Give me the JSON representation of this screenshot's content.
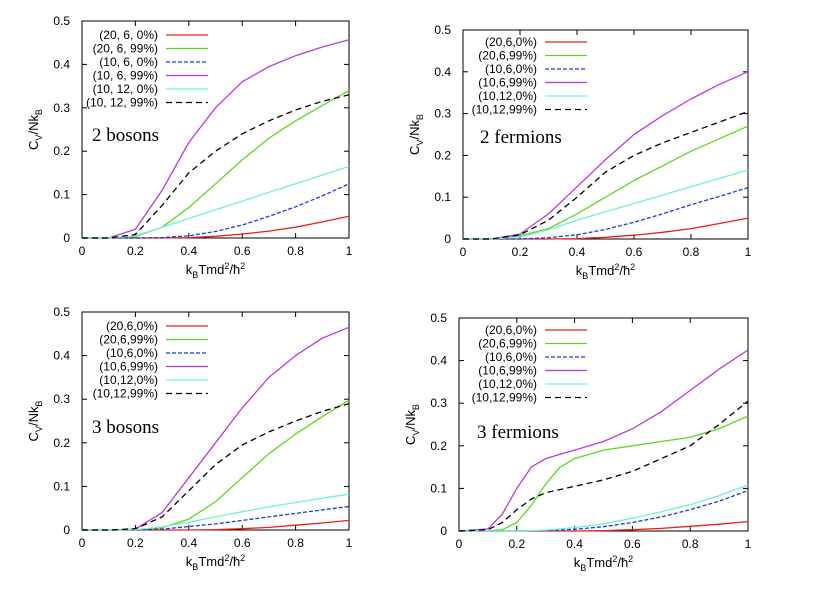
{
  "chart_data": [
    {
      "type": "line",
      "panel_label": "2 bosons",
      "xlabel": "k_BTmd^2/ħ^2",
      "ylabel": "C_V/Nk_B",
      "xlim": [
        0,
        1
      ],
      "ylim": [
        0,
        0.5
      ],
      "xticks": [
        "0",
        "0.2",
        "0.4",
        "0.6",
        "0.8",
        "1"
      ],
      "yticks": [
        "0",
        "0.1",
        "0.2",
        "0.3",
        "0.4",
        "0.5"
      ],
      "legend_position": "top-left",
      "series": [
        {
          "name": "(20, 6, 0%)",
          "color": "#e8211c",
          "dash": "solid",
          "x": [
            0,
            0.1,
            0.2,
            0.3,
            0.4,
            0.5,
            0.6,
            0.7,
            0.8,
            0.9,
            1.0
          ],
          "y": [
            0,
            0,
            0,
            0,
            0.001,
            0.004,
            0.009,
            0.016,
            0.025,
            0.037,
            0.05
          ]
        },
        {
          "name": "(20, 6, 99%)",
          "color": "#5ed81e",
          "dash": "solid",
          "x": [
            0,
            0.1,
            0.2,
            0.3,
            0.4,
            0.5,
            0.6,
            0.7,
            0.8,
            0.9,
            1.0
          ],
          "y": [
            0,
            0,
            0.003,
            0.025,
            0.07,
            0.125,
            0.18,
            0.23,
            0.27,
            0.305,
            0.34
          ]
        },
        {
          "name": "(10, 6, 0%)",
          "color": "#1f3ad8",
          "dash": "dashed",
          "x": [
            0,
            0.1,
            0.2,
            0.3,
            0.4,
            0.5,
            0.6,
            0.7,
            0.8,
            0.9,
            1.0
          ],
          "y": [
            0,
            0,
            0,
            0.001,
            0.005,
            0.015,
            0.03,
            0.05,
            0.072,
            0.097,
            0.125
          ]
        },
        {
          "name": "(10, 6, 99%)",
          "color": "#b23ee0",
          "dash": "solid",
          "x": [
            0,
            0.1,
            0.2,
            0.3,
            0.4,
            0.5,
            0.6,
            0.7,
            0.8,
            0.9,
            1.0
          ],
          "y": [
            0,
            0,
            0.02,
            0.11,
            0.22,
            0.3,
            0.36,
            0.395,
            0.42,
            0.44,
            0.457
          ]
        },
        {
          "name": "(10, 12, 0%)",
          "color": "#6ff2d3",
          "dash": "solid",
          "x": [
            0,
            0.1,
            0.2,
            0.3,
            0.4,
            0.5,
            0.6,
            0.7,
            0.8,
            0.9,
            1.0
          ],
          "y": [
            0,
            0,
            0.005,
            0.025,
            0.045,
            0.065,
            0.085,
            0.105,
            0.125,
            0.145,
            0.165
          ]
        },
        {
          "name": "(10, 12, 99%)",
          "color": "#000000",
          "dash": "dashed",
          "x": [
            0,
            0.1,
            0.2,
            0.3,
            0.4,
            0.5,
            0.6,
            0.7,
            0.8,
            0.9,
            1.0
          ],
          "y": [
            0,
            0,
            0.008,
            0.075,
            0.15,
            0.2,
            0.24,
            0.27,
            0.295,
            0.315,
            0.33
          ]
        }
      ]
    },
    {
      "type": "line",
      "panel_label": "2 fermions",
      "xlabel": "k_BTmd^2/ħ^2",
      "ylabel": "C_V/Nk_B",
      "xlim": [
        0,
        1
      ],
      "ylim": [
        0,
        0.5
      ],
      "xticks": [
        "0",
        "0.2",
        "0.4",
        "0.6",
        "0.8",
        "1"
      ],
      "yticks": [
        "0",
        "0.1",
        "0.2",
        "0.3",
        "0.4",
        "0.5"
      ],
      "legend_position": "top-left",
      "series": [
        {
          "name": "(20,6,0%)",
          "color": "#e8211c",
          "dash": "solid",
          "x": [
            0,
            0.1,
            0.2,
            0.3,
            0.4,
            0.5,
            0.6,
            0.7,
            0.8,
            0.9,
            1.0
          ],
          "y": [
            0,
            0,
            0,
            0,
            0.001,
            0.004,
            0.009,
            0.016,
            0.025,
            0.037,
            0.05
          ]
        },
        {
          "name": "(20,6,99%)",
          "color": "#5ed81e",
          "dash": "solid",
          "x": [
            0,
            0.1,
            0.2,
            0.3,
            0.4,
            0.5,
            0.6,
            0.7,
            0.8,
            0.9,
            1.0
          ],
          "y": [
            0,
            0,
            0.008,
            0.025,
            0.06,
            0.1,
            0.14,
            0.175,
            0.21,
            0.24,
            0.27
          ]
        },
        {
          "name": "(10,6,0%)",
          "color": "#1f3ad8",
          "dash": "dashed",
          "x": [
            0,
            0.1,
            0.2,
            0.3,
            0.4,
            0.5,
            0.6,
            0.7,
            0.8,
            0.9,
            1.0
          ],
          "y": [
            0,
            0,
            0,
            0.003,
            0.01,
            0.023,
            0.04,
            0.06,
            0.082,
            0.102,
            0.123
          ]
        },
        {
          "name": "(10,6,99%)",
          "color": "#b23ee0",
          "dash": "solid",
          "x": [
            0,
            0.1,
            0.2,
            0.3,
            0.4,
            0.5,
            0.6,
            0.7,
            0.8,
            0.9,
            1.0
          ],
          "y": [
            0,
            0,
            0.012,
            0.06,
            0.125,
            0.19,
            0.25,
            0.295,
            0.335,
            0.37,
            0.4
          ]
        },
        {
          "name": "(10,12,0%)",
          "color": "#6ff2d3",
          "dash": "solid",
          "x": [
            0,
            0.1,
            0.2,
            0.3,
            0.4,
            0.5,
            0.6,
            0.7,
            0.8,
            0.9,
            1.0
          ],
          "y": [
            0,
            0,
            0.005,
            0.022,
            0.045,
            0.065,
            0.085,
            0.105,
            0.125,
            0.145,
            0.165
          ]
        },
        {
          "name": "(10,12,99%)",
          "color": "#000000",
          "dash": "dashed",
          "x": [
            0,
            0.1,
            0.2,
            0.3,
            0.4,
            0.5,
            0.6,
            0.7,
            0.8,
            0.9,
            1.0
          ],
          "y": [
            0,
            0,
            0.01,
            0.045,
            0.1,
            0.16,
            0.2,
            0.23,
            0.255,
            0.28,
            0.305
          ]
        }
      ]
    },
    {
      "type": "line",
      "panel_label": "3 bosons",
      "xlabel": "k_BTmd^2/ħ^2",
      "ylabel": "C_V/Nk_B",
      "xlim": [
        0,
        1
      ],
      "ylim": [
        0,
        0.5
      ],
      "xticks": [
        "0",
        "0.2",
        "0.4",
        "0.6",
        "0.8",
        "1"
      ],
      "yticks": [
        "0",
        "0.1",
        "0.2",
        "0.3",
        "0.4",
        "0.5"
      ],
      "legend_position": "top-left",
      "series": [
        {
          "name": "(20,6,0%)",
          "color": "#e8211c",
          "dash": "solid",
          "x": [
            0,
            0.1,
            0.2,
            0.3,
            0.4,
            0.5,
            0.6,
            0.7,
            0.8,
            0.9,
            1.0
          ],
          "y": [
            0,
            0,
            0,
            0,
            0,
            0.001,
            0.003,
            0.006,
            0.011,
            0.016,
            0.022
          ]
        },
        {
          "name": "(20,6,99%)",
          "color": "#5ed81e",
          "dash": "solid",
          "x": [
            0,
            0.1,
            0.2,
            0.3,
            0.4,
            0.5,
            0.6,
            0.7,
            0.8,
            0.9,
            1.0
          ],
          "y": [
            0,
            0,
            0,
            0.005,
            0.025,
            0.065,
            0.12,
            0.175,
            0.22,
            0.26,
            0.298
          ]
        },
        {
          "name": "(10,6,0%)",
          "color": "#1f3ad8",
          "dash": "dashed",
          "x": [
            0,
            0.1,
            0.2,
            0.3,
            0.4,
            0.5,
            0.6,
            0.7,
            0.8,
            0.9,
            1.0
          ],
          "y": [
            0,
            0,
            0,
            0.002,
            0.008,
            0.014,
            0.022,
            0.03,
            0.038,
            0.046,
            0.054
          ]
        },
        {
          "name": "(10,6,99%)",
          "color": "#b23ee0",
          "dash": "solid",
          "x": [
            0,
            0.1,
            0.2,
            0.3,
            0.4,
            0.5,
            0.6,
            0.7,
            0.8,
            0.9,
            1.0
          ],
          "y": [
            0,
            0,
            0.002,
            0.04,
            0.12,
            0.2,
            0.28,
            0.35,
            0.4,
            0.44,
            0.465
          ]
        },
        {
          "name": "(10,12,0%)",
          "color": "#6ff2d3",
          "dash": "solid",
          "x": [
            0,
            0.1,
            0.2,
            0.3,
            0.4,
            0.5,
            0.6,
            0.7,
            0.8,
            0.9,
            1.0
          ],
          "y": [
            0,
            0,
            0.001,
            0.007,
            0.018,
            0.03,
            0.042,
            0.053,
            0.063,
            0.073,
            0.082
          ]
        },
        {
          "name": "(10,12,99%)",
          "color": "#000000",
          "dash": "dashed",
          "x": [
            0,
            0.1,
            0.2,
            0.3,
            0.4,
            0.5,
            0.6,
            0.7,
            0.8,
            0.9,
            1.0
          ],
          "y": [
            0,
            0,
            0.003,
            0.03,
            0.09,
            0.15,
            0.195,
            0.225,
            0.25,
            0.272,
            0.29
          ]
        }
      ]
    },
    {
      "type": "line",
      "panel_label": "3 fermions",
      "xlabel": "k_BTmd^2/ħ^2",
      "ylabel": "C_V/Nk_B",
      "xlim": [
        0,
        1
      ],
      "ylim": [
        0,
        0.5
      ],
      "xticks": [
        "0",
        "0.2",
        "0.4",
        "0.6",
        "0.8",
        "1"
      ],
      "yticks": [
        "0",
        "0.1",
        "0.2",
        "0.3",
        "0.4",
        "0.5"
      ],
      "legend_position": "top-left",
      "series": [
        {
          "name": "(20,6,0%)",
          "color": "#e8211c",
          "dash": "solid",
          "x": [
            0,
            0.1,
            0.2,
            0.3,
            0.4,
            0.5,
            0.6,
            0.7,
            0.8,
            0.9,
            1.0
          ],
          "y": [
            0,
            0,
            0,
            0,
            0,
            0.001,
            0.003,
            0.006,
            0.011,
            0.016,
            0.022
          ]
        },
        {
          "name": "(20,6,99%)",
          "color": "#5ed81e",
          "dash": "solid",
          "x": [
            0,
            0.1,
            0.15,
            0.2,
            0.25,
            0.3,
            0.35,
            0.4,
            0.5,
            0.6,
            0.7,
            0.8,
            0.9,
            1.0
          ],
          "y": [
            0,
            0,
            0.003,
            0.02,
            0.06,
            0.11,
            0.15,
            0.17,
            0.19,
            0.2,
            0.21,
            0.22,
            0.24,
            0.27
          ]
        },
        {
          "name": "(10,6,0%)",
          "color": "#1f3ad8",
          "dash": "dashed",
          "x": [
            0,
            0.1,
            0.2,
            0.3,
            0.4,
            0.5,
            0.6,
            0.7,
            0.8,
            0.9,
            1.0
          ],
          "y": [
            0,
            0,
            0,
            0.001,
            0.004,
            0.01,
            0.02,
            0.033,
            0.05,
            0.07,
            0.095
          ]
        },
        {
          "name": "(10,6,99%)",
          "color": "#b23ee0",
          "dash": "solid",
          "x": [
            0,
            0.1,
            0.15,
            0.2,
            0.25,
            0.3,
            0.35,
            0.4,
            0.5,
            0.6,
            0.7,
            0.8,
            0.9,
            1.0
          ],
          "y": [
            0,
            0.005,
            0.04,
            0.1,
            0.15,
            0.17,
            0.18,
            0.19,
            0.21,
            0.24,
            0.28,
            0.33,
            0.38,
            0.425
          ]
        },
        {
          "name": "(10,12,0%)",
          "color": "#6ff2d3",
          "dash": "solid",
          "x": [
            0,
            0.1,
            0.2,
            0.3,
            0.4,
            0.5,
            0.6,
            0.7,
            0.8,
            0.9,
            1.0
          ],
          "y": [
            0,
            0,
            0,
            0.002,
            0.008,
            0.017,
            0.03,
            0.045,
            0.062,
            0.083,
            0.108
          ]
        },
        {
          "name": "(10,12,99%)",
          "color": "#000000",
          "dash": "dashed",
          "x": [
            0,
            0.1,
            0.15,
            0.2,
            0.25,
            0.3,
            0.4,
            0.5,
            0.6,
            0.7,
            0.8,
            0.9,
            1.0
          ],
          "y": [
            0,
            0.003,
            0.02,
            0.05,
            0.075,
            0.09,
            0.105,
            0.12,
            0.14,
            0.17,
            0.2,
            0.25,
            0.305
          ]
        }
      ]
    }
  ]
}
